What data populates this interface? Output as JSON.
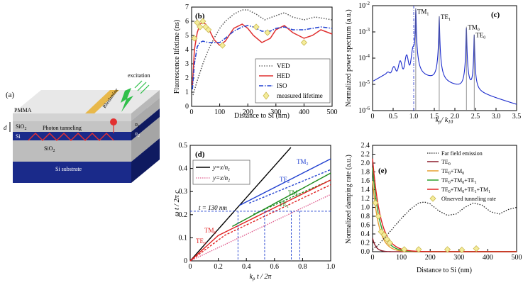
{
  "figure": {
    "panel_a": {
      "label": "(a)",
      "layers": {
        "pmma": "PMMA",
        "sio2_top": "SiO",
        "sio2_top_sub": "2",
        "si": "Si",
        "sio2_bottom": "SiO",
        "sio2_bottom_sub": "2",
        "substrate": "Si substrate"
      },
      "n1_label": "n",
      "n1_sub": "1",
      "n2_label": "n",
      "n2_sub": "2",
      "d_label": "d",
      "tunneling_label": "Photon tunneling",
      "rhodamine_label": "Rhodamine",
      "excitation_label": "excitation"
    }
  },
  "chart_data": [
    {
      "id": "b",
      "panel_label": "(b)",
      "type": "line",
      "xlabel": "Distance to Si (nm)",
      "ylabel": "Fluorescence lifetime (ns)",
      "xlim": [
        0,
        500
      ],
      "ylim": [
        0,
        7
      ],
      "xticks": [
        "0",
        "100",
        "200",
        "300",
        "400",
        "500"
      ],
      "yticks": [
        "0",
        "1",
        "2",
        "3",
        "4",
        "5",
        "6",
        "7"
      ],
      "legend": {
        "position": "bottom-right",
        "entries": [
          "VED",
          "HED",
          "ISO",
          "measured lifetime"
        ]
      },
      "series": [
        {
          "name": "VED",
          "style": "dotted",
          "color": "#555555",
          "x": [
            5,
            20,
            40,
            60,
            80,
            100,
            120,
            150,
            180,
            200,
            230,
            260,
            300,
            330,
            360,
            400,
            440,
            470,
            500
          ],
          "y": [
            0.8,
            1.8,
            3.0,
            4.0,
            4.8,
            5.5,
            6.0,
            6.5,
            6.8,
            6.8,
            6.5,
            6.1,
            6.4,
            6.6,
            6.3,
            6.1,
            6.3,
            6.2,
            6.1
          ]
        },
        {
          "name": "HED",
          "style": "solid",
          "color": "#e03030",
          "x": [
            3,
            10,
            20,
            30,
            40,
            50,
            60,
            80,
            100,
            120,
            150,
            180,
            200,
            220,
            250,
            280,
            300,
            330,
            360,
            400,
            430,
            460,
            500
          ],
          "y": [
            1.5,
            4.0,
            5.2,
            5.8,
            5.9,
            5.8,
            5.5,
            4.7,
            4.3,
            4.6,
            5.5,
            5.8,
            5.5,
            5.0,
            4.5,
            4.8,
            5.4,
            5.7,
            5.2,
            4.8,
            5.0,
            5.4,
            5.1
          ]
        },
        {
          "name": "ISO",
          "style": "dashdot",
          "color": "#1f3fd0",
          "x": [
            3,
            10,
            20,
            30,
            40,
            60,
            80,
            100,
            120,
            150,
            180,
            200,
            220,
            250,
            280,
            300,
            330,
            360,
            400,
            430,
            460,
            500
          ],
          "y": [
            1.2,
            3.0,
            4.2,
            4.5,
            4.6,
            4.5,
            4.5,
            4.5,
            4.8,
            5.3,
            5.6,
            5.7,
            5.6,
            5.3,
            5.3,
            5.5,
            5.6,
            5.4,
            5.4,
            5.5,
            5.6,
            5.5
          ]
        },
        {
          "name": "measured lifetime",
          "style": "marker",
          "color": "#d9c560",
          "x": [
            10,
            20,
            30,
            40,
            50,
            60,
            110,
            230,
            270,
            400
          ],
          "y": [
            4.8,
            5.9,
            5.6,
            6.0,
            5.6,
            5.4,
            4.3,
            5.6,
            5.2,
            4.5
          ]
        }
      ]
    },
    {
      "id": "c",
      "panel_label": "(c)",
      "type": "line",
      "xlabel": "k",
      "xlabel_sub_num": "ρ",
      "xlabel_den": "/ k",
      "xlabel_sub_den": "10",
      "ylabel": "Normalized power spectrum (a.u.)",
      "xlim": [
        0,
        3.5
      ],
      "ylog": true,
      "ylim_exp": [
        -6,
        -2
      ],
      "xticks": [
        "0",
        "0.5",
        "1.0",
        "1.5",
        "2.0",
        "2.5",
        "3.0",
        "3.5"
      ],
      "ytick_base": "10",
      "yticks_exp": [
        "-6",
        "-5",
        "-4",
        "-3",
        "-2"
      ],
      "peaks": [
        {
          "name": "TM",
          "sub": "1",
          "x": 1.05,
          "y_exp": -2.1
        },
        {
          "name": "TE",
          "sub": "1",
          "x": 1.62,
          "y_exp": -2.4
        },
        {
          "name": "TM",
          "sub": "0",
          "x": 2.28,
          "y_exp": -2.8
        },
        {
          "name": "TE",
          "sub": "0",
          "x": 2.47,
          "y_exp": -3.1
        }
      ]
    },
    {
      "id": "d",
      "panel_label": "(d)",
      "type": "line",
      "xlabel": "k",
      "xlabel_sub": "ρ",
      "xlabel_rest": " t / 2π",
      "ylabel": "ω t / 2π c",
      "xlim": [
        0,
        1.0
      ],
      "ylim": [
        0,
        0.5
      ],
      "xticks": [
        "0",
        "0.2",
        "0.4",
        "0.6",
        "0.8",
        "1.0"
      ],
      "yticks": [
        "0",
        "0.1",
        "0.2",
        "0.3",
        "0.4",
        "0.5"
      ],
      "annotation": "t = 130 nm",
      "h_line": 0.215,
      "legend_entries": [
        {
          "lhs": "y",
          "rhs": "x/n",
          "sub": "1"
        },
        {
          "lhs": "y",
          "rhs": "x/n",
          "sub": "2"
        }
      ],
      "mode_labels": [
        {
          "name": "TM",
          "sub": "2"
        },
        {
          "name": "TE",
          "sub": "2"
        },
        {
          "name": "TM",
          "sub": "1"
        },
        {
          "name": "TE",
          "sub": "1"
        },
        {
          "name": "TM",
          "sub": "0"
        },
        {
          "name": "TE",
          "sub": "0"
        }
      ],
      "v_lines": [
        0.34,
        0.53,
        0.72,
        0.78
      ]
    },
    {
      "id": "e",
      "panel_label": "(e)",
      "type": "line",
      "xlabel": "Distance to Si (nm)",
      "ylabel": "Normalized damping rate (a.u.)",
      "xlim": [
        0,
        500
      ],
      "ylim": [
        0,
        2.4
      ],
      "xticks": [
        "0",
        "100",
        "200",
        "300",
        "400",
        "500"
      ],
      "yticks": [
        "0.0",
        "0.2",
        "0.4",
        "0.6",
        "0.8",
        "1.0",
        "1.2",
        "1.4",
        "1.6",
        "1.8",
        "2.0",
        "2.2",
        "2.4"
      ],
      "legend": {
        "position": "top-right",
        "entries": [
          {
            "text": "Far field emission"
          },
          {
            "text": "TE",
            "sub": "0"
          },
          {
            "text": "TE",
            "sub": "0",
            "rest": "+TM",
            "sub2": "0"
          },
          {
            "text": "TE",
            "sub": "0",
            "rest": "+TM",
            "sub2": "0",
            "rest2": "+TE",
            "sub3": "1"
          },
          {
            "text": "TE",
            "sub": "0",
            "rest": "+TM",
            "sub2": "0",
            "rest2": "+TE",
            "sub3": "1",
            "rest3": "+TM",
            "sub4": "1"
          },
          {
            "text": "Observed tunneling rate"
          }
        ]
      },
      "series": [
        {
          "name": "Far field emission",
          "style": "dotted",
          "color": "#222222",
          "x": [
            0,
            20,
            40,
            60,
            80,
            100,
            130,
            160,
            180,
            200,
            230,
            260,
            290,
            320,
            350,
            380,
            410,
            440,
            470,
            500
          ],
          "y": [
            0.05,
            0.15,
            0.3,
            0.45,
            0.6,
            0.75,
            0.95,
            1.1,
            1.12,
            1.08,
            0.92,
            0.82,
            0.85,
            1.0,
            1.1,
            1.05,
            0.9,
            0.85,
            0.95,
            1.0
          ]
        },
        {
          "name": "Observed tunneling rate",
          "style": "marker",
          "color": "#d9c560",
          "x": [
            10,
            20,
            30,
            40,
            50,
            60,
            110,
            160,
            260,
            310,
            360
          ],
          "y": [
            1.1,
            0.8,
            0.45,
            0.38,
            0.28,
            0.2,
            0.05,
            0.05,
            0.05,
            0.04,
            0.07
          ]
        }
      ]
    }
  ]
}
